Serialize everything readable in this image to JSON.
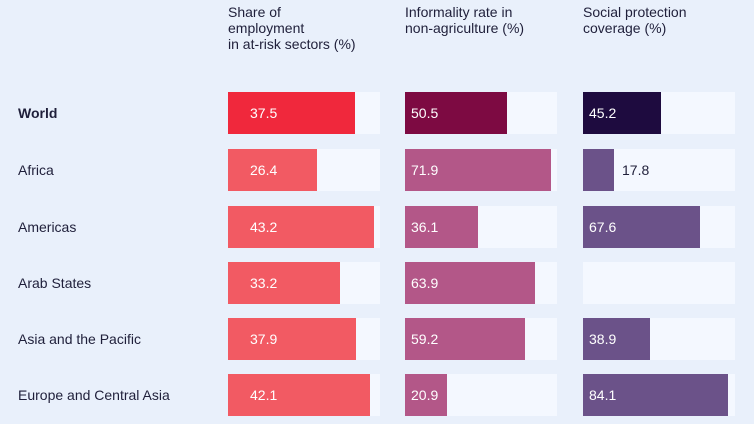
{
  "chart_data": {
    "type": "bar",
    "categories": [
      "World",
      "Africa",
      "Americas",
      "Arab States",
      "Asia and the Pacific",
      "Europe and Central Asia"
    ],
    "highlight_category": "World",
    "series": [
      {
        "name": "Share of\nemployment\nin at-risk sectors (%)",
        "values": [
          37.5,
          26.4,
          43.2,
          33.2,
          37.9,
          42.1
        ],
        "labels": [
          "37.5",
          "26.4",
          "43.2",
          "33.2",
          "37.9",
          "42.1"
        ],
        "color": "#f25a63",
        "highlight_color": "#f0283c",
        "max": 45
      },
      {
        "name": "Informality rate in\nnon-agriculture (%)",
        "values": [
          50.5,
          71.9,
          36.1,
          63.9,
          59.2,
          20.9
        ],
        "labels": [
          "50.5",
          "71.9",
          "36.1",
          "63.9",
          "59.2",
          "20.9"
        ],
        "color": "#b35788",
        "highlight_color": "#7d0a42",
        "max": 75
      },
      {
        "name": "Social protection\ncoverage (%)",
        "values": [
          45.2,
          17.8,
          67.6,
          null,
          38.9,
          84.1
        ],
        "labels": [
          "45.2",
          "17.8",
          "67.6",
          "",
          "38.9",
          "84.1"
        ],
        "color": "#6b5289",
        "highlight_color": "#1e0b3f",
        "max": 88
      }
    ],
    "grid": false,
    "legend": "none"
  }
}
